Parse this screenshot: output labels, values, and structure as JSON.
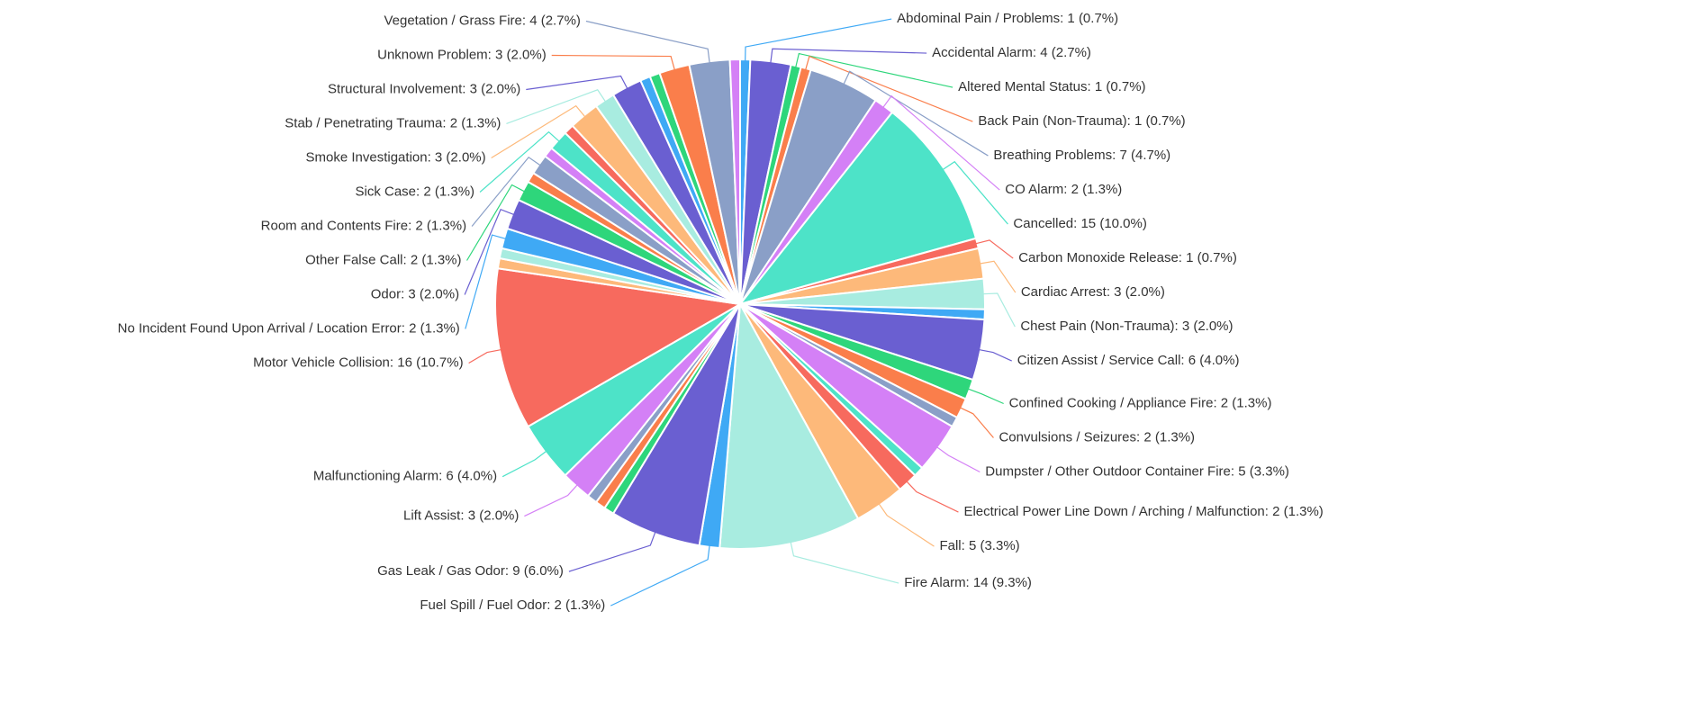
{
  "chart_data": {
    "type": "pie",
    "categories": [
      "Abdominal Pain / Problems: 1 (0.7%)",
      "Accidental Alarm: 4 (2.7%)",
      "Altered Mental Status: 1 (0.7%)",
      "Back Pain (Non-Trauma): 1 (0.7%)",
      "Breathing Problems: 7 (4.7%)",
      "CO Alarm: 2 (1.3%)",
      "Cancelled: 15 (10.0%)",
      "Carbon Monoxide Release: 1 (0.7%)",
      "Cardiac Arrest: 3 (2.0%)",
      "Chest Pain (Non-Trauma): 3 (2.0%)",
      null,
      "Citizen Assist / Service Call: 6 (4.0%)",
      "Confined Cooking / Appliance Fire: 2 (1.3%)",
      "Convulsions / Seizures: 2 (1.3%)",
      null,
      "Dumpster / Other Outdoor Container Fire: 5 (3.3%)",
      null,
      "Electrical Power Line Down / Arching / Malfunction: 2 (1.3%)",
      "Fall: 5 (3.3%)",
      "Fire Alarm: 14 (9.3%)",
      "Fuel Spill / Fuel Odor: 2 (1.3%)",
      "Gas Leak / Gas Odor: 9 (6.0%)",
      null,
      null,
      null,
      "Lift Assist: 3 (2.0%)",
      "Malfunctioning Alarm: 6 (4.0%)",
      "Motor Vehicle Collision: 16 (10.7%)",
      null,
      null,
      "No Incident Found Upon Arrival / Location Error: 2 (1.3%)",
      "Odor: 3 (2.0%)",
      "Other False Call: 2 (1.3%)",
      null,
      "Room and Contents Fire: 2 (1.3%)",
      null,
      "Sick Case: 2 (1.3%)",
      null,
      "Smoke Investigation: 3 (2.0%)",
      "Stab / Penetrating Trauma: 2 (1.3%)",
      "Structural Involvement: 3 (2.0%)",
      null,
      null,
      "Unknown Problem: 3 (2.0%)",
      "Vegetation / Grass Fire: 4 (2.7%)",
      null
    ],
    "values": [
      1,
      4,
      1,
      1,
      7,
      2,
      15,
      1,
      3,
      3,
      1,
      6,
      2,
      2,
      1,
      5,
      1,
      2,
      5,
      14,
      2,
      9,
      1,
      1,
      1,
      3,
      6,
      16,
      1,
      1,
      2,
      3,
      2,
      1,
      2,
      1,
      2,
      1,
      3,
      2,
      3,
      1,
      1,
      3,
      4,
      1
    ],
    "colors": [
      "#3fa9f5",
      "#6a5fd1",
      "#2ed67b",
      "#fa7e4b",
      "#8a9fc7",
      "#d480f6",
      "#4de3c8",
      "#f76a5e",
      "#fdb97a",
      "#a8ece0",
      "#3fa9f5",
      "#6a5fd1",
      "#2ed67b",
      "#fa7e4b",
      "#8a9fc7",
      "#d480f6",
      "#4de3c8",
      "#f76a5e",
      "#fdb97a",
      "#a8ece0",
      "#3fa9f5",
      "#6a5fd1",
      "#2ed67b",
      "#fa7e4b",
      "#8a9fc7",
      "#d480f6",
      "#4de3c8",
      "#f76a5e",
      "#fdb97a",
      "#a8ece0",
      "#3fa9f5",
      "#6a5fd1",
      "#2ed67b",
      "#fa7e4b",
      "#8a9fc7",
      "#d480f6",
      "#4de3c8",
      "#f76a5e",
      "#fdb97a",
      "#a8ece0",
      "#6a5fd1",
      "#3fa9f5",
      "#2ed67b",
      "#fa7e4b",
      "#8a9fc7",
      "#d480f6"
    ]
  }
}
